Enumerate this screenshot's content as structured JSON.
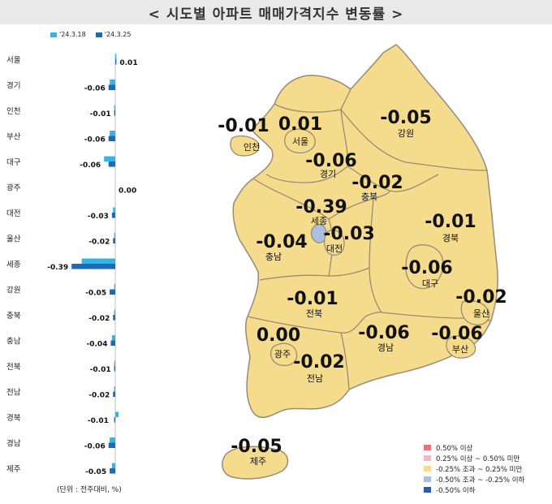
{
  "title": "< 시도별 아파트 매매가격지수 변동률 >",
  "unit_note": "(단위 : 전주대비, %)",
  "colors": {
    "prev_week": "#35b5e6",
    "this_week": "#1f68b5",
    "map_fill": "#f5dc8c",
    "map_stroke": "#9a8a76",
    "sejong_fill": "#a9bfe3"
  },
  "chart_data": {
    "type": "bar",
    "orientation": "horizontal",
    "series": [
      {
        "name": "'24.3.18",
        "values": [
          0.01,
          -0.05,
          -0.01,
          -0.05,
          -0.1,
          0.0,
          -0.02,
          -0.01,
          -0.3,
          -0.01,
          -0.01,
          -0.03,
          -0.01,
          -0.01,
          0.03,
          -0.05,
          -0.03
        ]
      },
      {
        "name": "'24.3.25",
        "values": [
          0.01,
          -0.06,
          -0.01,
          -0.06,
          -0.06,
          0.0,
          -0.03,
          -0.02,
          -0.39,
          -0.05,
          -0.02,
          -0.04,
          -0.01,
          -0.02,
          -0.01,
          -0.06,
          -0.05
        ]
      }
    ],
    "categories": [
      "서울",
      "경기",
      "인천",
      "부산",
      "대구",
      "광주",
      "대전",
      "울산",
      "세종",
      "강원",
      "충북",
      "충남",
      "전북",
      "전남",
      "경북",
      "경남",
      "제주"
    ],
    "labels": [
      "0.01",
      "-0.06",
      "-0.01",
      "-0.06",
      "-0.06",
      "0.00",
      "-0.03",
      "-0.02",
      "-0.39",
      "-0.05",
      "-0.02",
      "-0.04",
      "-0.01",
      "-0.02",
      "-0.01",
      "-0.06",
      "-0.05"
    ]
  },
  "map_regions": [
    {
      "name": "서울",
      "value": "0.01"
    },
    {
      "name": "인천",
      "value": "-0.01"
    },
    {
      "name": "경기",
      "value": "-0.06"
    },
    {
      "name": "강원",
      "value": "-0.05"
    },
    {
      "name": "충북",
      "value": "-0.02"
    },
    {
      "name": "세종",
      "value": "-0.39"
    },
    {
      "name": "대전",
      "value": "-0.03"
    },
    {
      "name": "충남",
      "value": "-0.04"
    },
    {
      "name": "경북",
      "value": "-0.01"
    },
    {
      "name": "대구",
      "value": "-0.06"
    },
    {
      "name": "전북",
      "value": "-0.01"
    },
    {
      "name": "울산",
      "value": "-0.02"
    },
    {
      "name": "광주",
      "value": "0.00"
    },
    {
      "name": "경남",
      "value": "-0.06"
    },
    {
      "name": "부산",
      "value": "-0.06"
    },
    {
      "name": "전남",
      "value": "-0.02"
    },
    {
      "name": "제주",
      "value": "-0.05"
    }
  ],
  "map_legend": [
    {
      "label": "0.50% 이상",
      "color": "#e8737a"
    },
    {
      "label": "0.25% 이상 ~ 0.50% 미만",
      "color": "#f4b9bb"
    },
    {
      "label": "-0.25% 조과 ~ 0.25% 미만",
      "color": "#f5dc8c"
    },
    {
      "label": "-0.50% 조과 ~ -0.25% 이하",
      "color": "#a9bfe3"
    },
    {
      "label": "-0.50% 이하",
      "color": "#2d5ca8"
    }
  ]
}
